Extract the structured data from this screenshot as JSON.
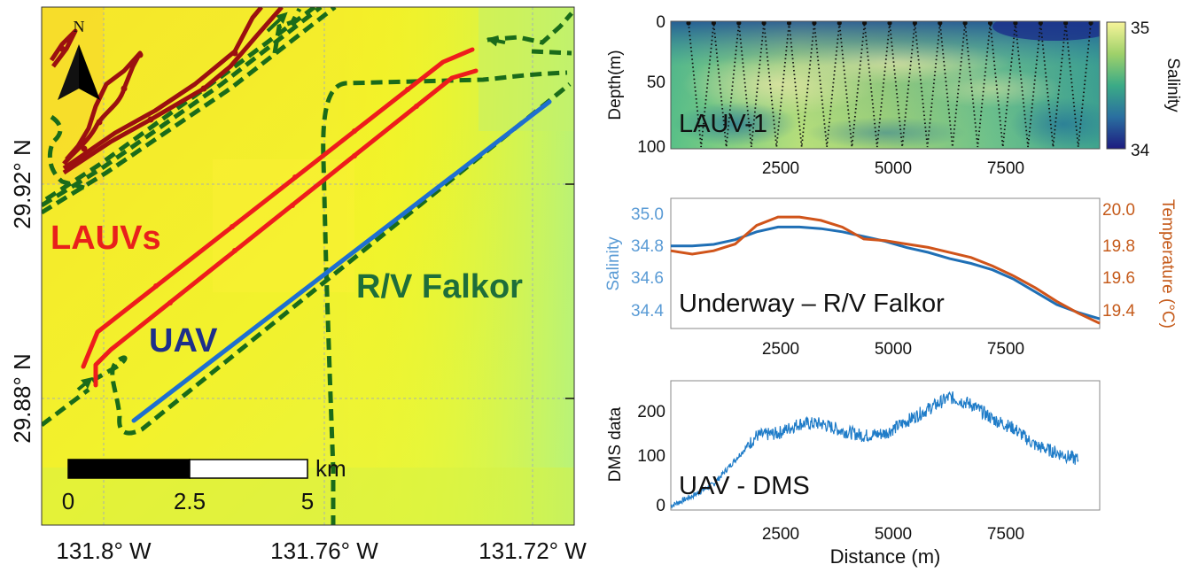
{
  "map": {
    "north_label": "N",
    "lat_ticks": [
      "29.92° N",
      "29.88° N"
    ],
    "lon_ticks": [
      "131.8° W",
      "131.76° W",
      "131.72° W"
    ],
    "platform_labels": {
      "lauvs": "LAUVs",
      "uav": "UAV",
      "falkor": "R/V Falkor"
    },
    "scalebar": {
      "unit": "km",
      "ticks": [
        "0",
        "2.5",
        "5"
      ]
    },
    "colors": {
      "lauv": "#ee1c1c",
      "lauv_dark": "#9b1010",
      "uav": "#1e6fd0",
      "falkor": "#1a6b1a",
      "uav_label": "#1d2f8a",
      "falkor_label": "#1e6e3a",
      "background": "#f2f22a"
    }
  },
  "chart_data": [
    {
      "type": "heatmap",
      "panel_label": "LAUV-1",
      "ylabel": "Depth(m)",
      "y_ticks": [
        "0",
        "50",
        "100"
      ],
      "x_ticks": [
        "2500",
        "5000",
        "7500"
      ],
      "ylim": [
        100,
        0
      ],
      "xlim": [
        0,
        10000
      ],
      "colorbar": {
        "label": "Salinity",
        "ticks": [
          "35",
          "34"
        ],
        "range": [
          34,
          35
        ]
      },
      "yo_count": 16
    },
    {
      "type": "line",
      "panel_label": "Underway – R/V Falkor",
      "ylabel_left": "Salinity",
      "ylabel_right": "Temperature (°C)",
      "y_ticks_left": [
        "35.0",
        "34.8",
        "34.6",
        "34.4"
      ],
      "y_ticks_right": [
        "20.0",
        "19.8",
        "19.6",
        "19.4"
      ],
      "x_ticks": [
        "2500",
        "5000",
        "7500"
      ],
      "xlim": [
        0,
        10000
      ],
      "ylim_left": [
        34.3,
        35.1
      ],
      "ylim_right": [
        19.35,
        20.1
      ],
      "x": [
        0,
        500,
        1000,
        1500,
        2000,
        2500,
        3000,
        3500,
        4000,
        4500,
        5000,
        5500,
        6000,
        6500,
        7000,
        7500,
        8000,
        8500,
        9000,
        9500,
        10000
      ],
      "series": [
        {
          "axis": "left",
          "color": "#1f6fb5",
          "values": [
            34.81,
            34.81,
            34.82,
            34.85,
            34.9,
            34.93,
            34.93,
            34.92,
            34.9,
            34.87,
            34.84,
            34.8,
            34.77,
            34.73,
            34.7,
            34.66,
            34.6,
            34.52,
            34.44,
            34.39,
            34.35
          ]
        },
        {
          "axis": "right",
          "color": "#d0541a",
          "values": [
            19.8,
            19.78,
            19.8,
            19.84,
            19.95,
            20.0,
            20.0,
            19.98,
            19.94,
            19.87,
            19.86,
            19.84,
            19.82,
            19.79,
            19.76,
            19.71,
            19.65,
            19.58,
            19.5,
            19.43,
            19.37
          ]
        }
      ]
    },
    {
      "type": "line",
      "panel_label": "UAV - DMS",
      "xlabel": "Distance (m)",
      "ylabel": "DMS data",
      "y_ticks": [
        "200",
        "100",
        "0"
      ],
      "x_ticks": [
        "2500",
        "5000",
        "7500"
      ],
      "xlim": [
        0,
        10000
      ],
      "ylim": [
        0,
        260
      ],
      "color": "#1f7cc8",
      "x": [
        0,
        500,
        1000,
        1500,
        2000,
        2500,
        3000,
        3500,
        4000,
        4500,
        5000,
        5500,
        6000,
        6500,
        7000,
        7500,
        8000,
        8500,
        9000,
        9500
      ],
      "values": [
        5,
        25,
        50,
        100,
        150,
        155,
        175,
        175,
        160,
        150,
        155,
        180,
        205,
        230,
        215,
        185,
        165,
        130,
        115,
        100
      ]
    }
  ]
}
